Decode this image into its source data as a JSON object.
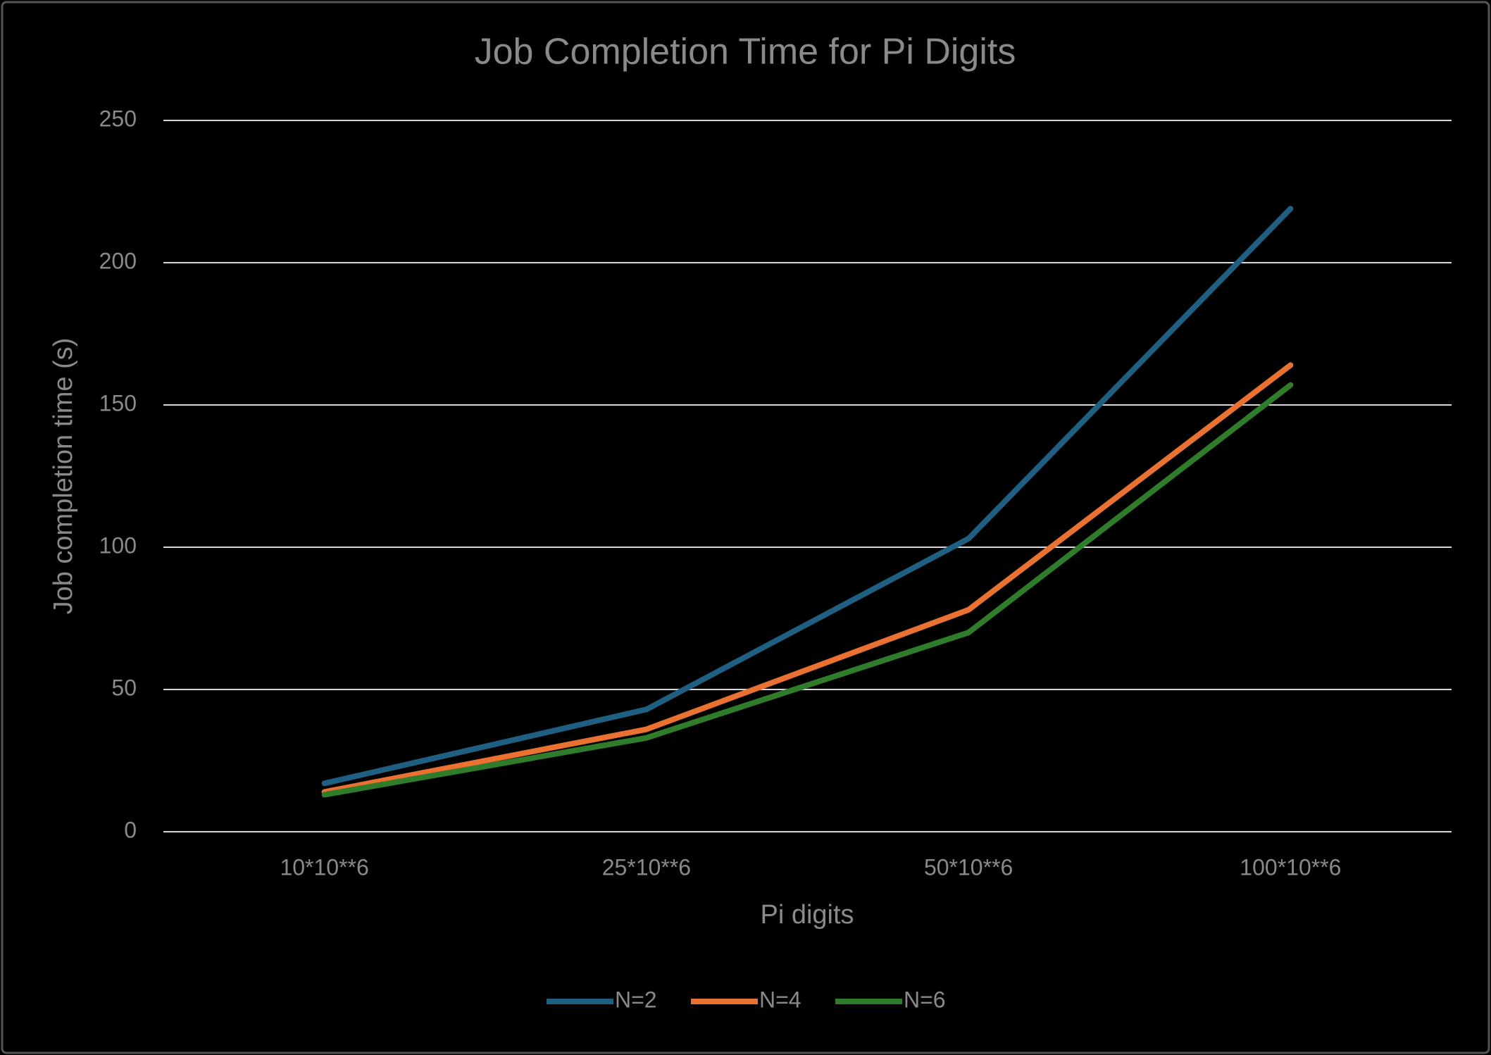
{
  "chart_data": {
    "type": "line",
    "title": "Job Completion Time for Pi Digits",
    "x_label": "Pi digits",
    "y_label": "Job completion time (s)",
    "categories": [
      "10*10**6",
      "25*10**6",
      "50*10**6",
      "100*10**6"
    ],
    "series": [
      {
        "name": "N=2",
        "color": "#1f5f82",
        "values": [
          17,
          43,
          103,
          219
        ]
      },
      {
        "name": "N=4",
        "color": "#e97132",
        "values": [
          14,
          36,
          78,
          164
        ]
      },
      {
        "name": "N=6",
        "color": "#2f7d2a",
        "values": [
          13,
          33,
          70,
          157
        ]
      }
    ],
    "ylim": [
      0,
      250
    ],
    "yticks": [
      0,
      50,
      100,
      150,
      200,
      250
    ],
    "grid": true,
    "legend": "bottom"
  }
}
